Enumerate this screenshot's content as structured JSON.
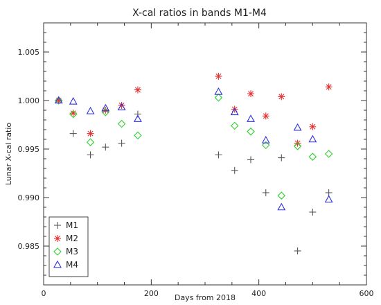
{
  "chart_data": {
    "type": "scatter",
    "title": "X-cal ratios in bands M1-M4",
    "xlabel": "Days from 2018",
    "ylabel": "Lunar X-cal ratio",
    "xlim": [
      0,
      600
    ],
    "ylim": [
      0.981,
      1.008
    ],
    "xticks": [
      0,
      200,
      400,
      600
    ],
    "xtick_labels": [
      "0",
      "200",
      "400",
      "600"
    ],
    "yticks": [
      0.985,
      0.99,
      0.995,
      1.0,
      1.005
    ],
    "ytick_labels": [
      "0.985",
      "0.990",
      "0.995",
      "1.000",
      "1.005"
    ],
    "grid": false,
    "legend_position": "bottom-left",
    "series": [
      {
        "name": "M1",
        "marker": "plus",
        "color": "#555555",
        "x": [
          28,
          55,
          87,
          115,
          145,
          175,
          325,
          355,
          385,
          413,
          442,
          472,
          500,
          530
        ],
        "y": [
          1.0,
          0.9966,
          0.9944,
          0.9952,
          0.9956,
          0.9986,
          0.9944,
          0.9928,
          0.9939,
          0.9905,
          0.9941,
          0.9845,
          0.9885,
          0.9905
        ]
      },
      {
        "name": "M2",
        "marker": "asterisk",
        "color": "#e83030",
        "x": [
          28,
          55,
          87,
          115,
          145,
          175,
          325,
          355,
          385,
          413,
          442,
          472,
          500,
          530
        ],
        "y": [
          1.0,
          0.9987,
          0.9966,
          0.999,
          0.9995,
          1.0011,
          1.0025,
          0.9991,
          1.0007,
          0.9984,
          1.0004,
          0.9956,
          0.9973,
          1.0014
        ]
      },
      {
        "name": "M3",
        "marker": "diamond",
        "color": "#30d030",
        "x": [
          28,
          55,
          87,
          115,
          145,
          175,
          325,
          355,
          385,
          413,
          442,
          472,
          500,
          530
        ],
        "y": [
          1.0,
          0.9986,
          0.9957,
          0.9988,
          0.9976,
          0.9964,
          1.0003,
          0.9974,
          0.9968,
          0.9954,
          0.9902,
          0.9953,
          0.9942,
          0.9945
        ]
      },
      {
        "name": "M4",
        "marker": "triangle",
        "color": "#3030e0",
        "x": [
          28,
          55,
          87,
          115,
          145,
          175,
          325,
          355,
          385,
          413,
          442,
          472,
          500,
          530
        ],
        "y": [
          1.0,
          0.9999,
          0.9989,
          0.9992,
          0.9993,
          0.9981,
          1.0009,
          0.9988,
          0.9981,
          0.9959,
          0.989,
          0.9972,
          0.996,
          0.9898
        ]
      }
    ]
  }
}
